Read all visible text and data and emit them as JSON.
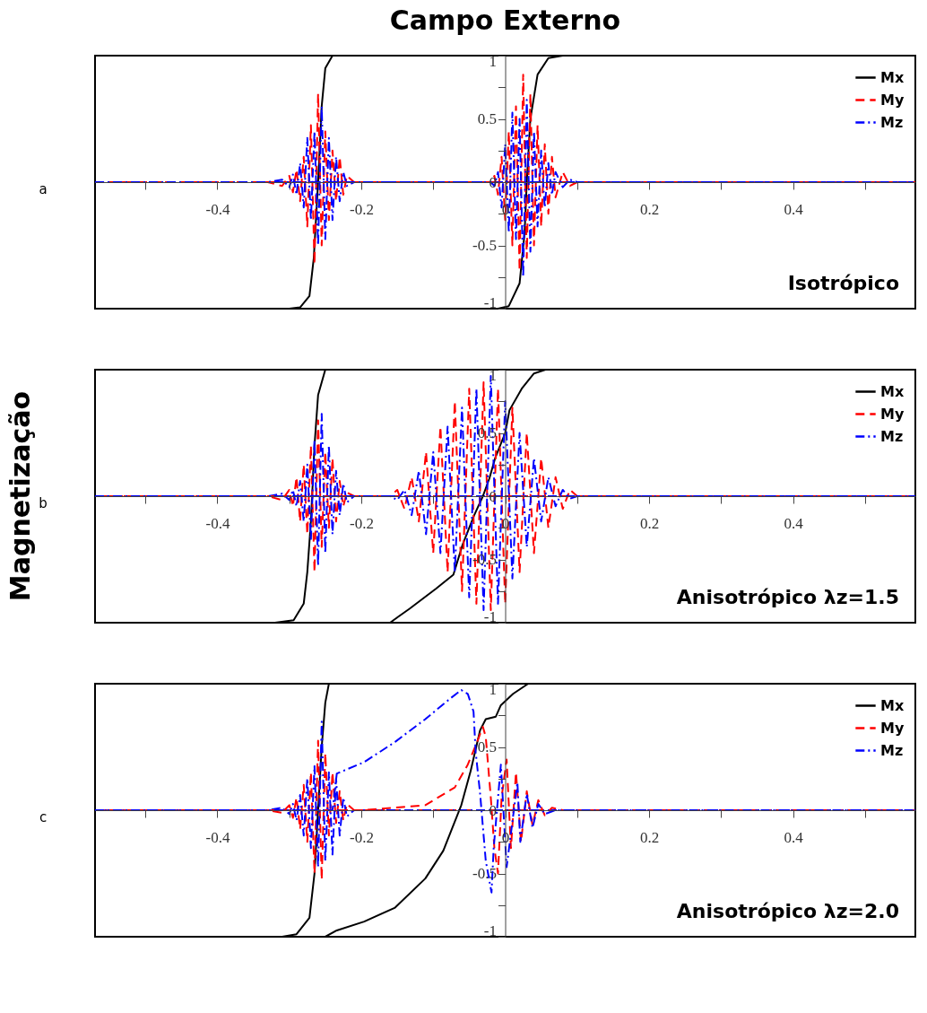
{
  "chart_data": [
    {
      "type": "line",
      "title": "Campo Externo",
      "xlim": [
        -0.57,
        0.57
      ],
      "ylim": [
        -1,
        1
      ],
      "xticks": [
        {
          "value": -0.5,
          "label": null
        },
        -0.4,
        {
          "value": -0.3,
          "label": null
        },
        -0.2,
        {
          "value": -0.1,
          "label": null
        },
        0,
        {
          "value": 0.1,
          "label": null
        },
        0.2,
        {
          "value": 0.3,
          "label": null
        },
        0.4,
        {
          "value": 0.5,
          "label": null
        }
      ],
      "yticks": [
        -1,
        {
          "value": -0.75,
          "label": null
        },
        -0.5,
        {
          "value": -0.25,
          "label": null
        },
        0,
        {
          "value": 0.25,
          "label": null
        },
        0.5,
        {
          "value": 0.75,
          "label": null
        },
        1
      ],
      "grid": false,
      "legend": "top right",
      "annotations": [
        "a",
        "Isotrópico"
      ],
      "series": [
        {
          "name": "Mx",
          "color": "#000000",
          "line_style": "solid",
          "x": [
            0.57,
            -0.24,
            -0.25,
            -0.255,
            -0.26,
            -0.266,
            -0.272,
            -0.285,
            -0.3,
            -0.57
          ],
          "values": [
            1,
            1,
            0.9,
            0.6,
            0,
            -0.6,
            -0.9,
            -0.99,
            -1,
            -1
          ]
        },
        {
          "name": "My",
          "color": "#ff0000",
          "line_style": "dashed",
          "x": [
            0.57,
            -0.21,
            -0.22,
            -0.225,
            -0.23,
            -0.235,
            -0.24,
            -0.245,
            -0.25,
            -0.255,
            -0.26,
            -0.265,
            -0.27,
            -0.275,
            -0.28,
            -0.285,
            -0.29,
            -0.295,
            -0.3,
            -0.31,
            -0.33,
            -0.57
          ],
          "values": [
            0,
            0,
            0.05,
            -0.1,
            0.2,
            -0.15,
            0.25,
            -0.3,
            0.4,
            -0.5,
            0.7,
            -0.65,
            0.45,
            -0.35,
            0.2,
            -0.15,
            0.1,
            -0.08,
            0.05,
            -0.03,
            0,
            0
          ]
        },
        {
          "name": "Mz",
          "color": "#0000ff",
          "line_style": "dashdot",
          "x": [
            0.57,
            -0.21,
            -0.22,
            -0.225,
            -0.23,
            -0.235,
            -0.24,
            -0.245,
            -0.25,
            -0.255,
            -0.26,
            -0.265,
            -0.27,
            -0.275,
            -0.28,
            -0.285,
            -0.29,
            -0.295,
            -0.3,
            -0.31,
            -0.33,
            -0.57
          ],
          "values": [
            0,
            0,
            -0.03,
            0.08,
            -0.15,
            0.2,
            -0.3,
            0.35,
            -0.45,
            0.6,
            -0.5,
            0.4,
            -0.3,
            0.35,
            -0.2,
            0.15,
            -0.1,
            0.06,
            -0.04,
            0.02,
            0,
            0
          ]
        },
        {
          "color": "#000000",
          "line_style": "solid",
          "x": [
            -0.57,
            -0.01,
            0.005,
            0.02,
            0.027,
            0.03,
            0.035,
            0.045,
            0.06,
            0.08,
            0.57
          ],
          "values": [
            -1,
            -1,
            -0.98,
            -0.8,
            -0.4,
            0,
            0.5,
            0.85,
            0.98,
            1,
            1
          ]
        },
        {
          "color": "#ff0000",
          "line_style": "dashed",
          "x": [
            -0.57,
            -0.02,
            -0.015,
            -0.01,
            -0.005,
            0,
            0.005,
            0.01,
            0.015,
            0.02,
            0.025,
            0.03,
            0.035,
            0.04,
            0.045,
            0.05,
            0.055,
            0.06,
            0.065,
            0.07,
            0.08,
            0.09,
            0.1,
            0.57
          ],
          "values": [
            0,
            0,
            0.05,
            -0.1,
            0.2,
            -0.3,
            0.4,
            -0.5,
            0.6,
            -0.7,
            0.85,
            -0.6,
            0.7,
            -0.5,
            0.45,
            -0.35,
            0.3,
            -0.25,
            0.2,
            -0.12,
            0.08,
            -0.03,
            0,
            0
          ]
        },
        {
          "color": "#0000ff",
          "line_style": "dashdot",
          "x": [
            -0.57,
            -0.02,
            -0.015,
            -0.01,
            -0.005,
            0,
            0.005,
            0.01,
            0.015,
            0.02,
            0.025,
            0.03,
            0.035,
            0.04,
            0.045,
            0.05,
            0.055,
            0.06,
            0.065,
            0.07,
            0.08,
            0.09,
            0.1,
            0.57
          ],
          "values": [
            0,
            0,
            -0.03,
            0.08,
            -0.2,
            0.3,
            -0.4,
            0.55,
            -0.45,
            0.5,
            -0.75,
            0.65,
            -0.55,
            0.4,
            -0.35,
            0.25,
            -0.2,
            0.15,
            -0.1,
            0.08,
            -0.04,
            0.02,
            0,
            0
          ]
        }
      ]
    },
    {
      "type": "line",
      "ylabel": "Magnetização",
      "xlim": [
        -0.57,
        0.57
      ],
      "ylim": [
        -1,
        1
      ],
      "xticks": [
        {
          "value": -0.5,
          "label": null
        },
        -0.4,
        {
          "value": -0.3,
          "label": null
        },
        -0.2,
        {
          "value": -0.1,
          "label": null
        },
        0,
        {
          "value": 0.1,
          "label": null
        },
        0.2,
        {
          "value": 0.3,
          "label": null
        },
        0.4,
        {
          "value": 0.5,
          "label": null
        }
      ],
      "yticks": [
        -1,
        {
          "value": -0.75,
          "label": null
        },
        -0.5,
        {
          "value": -0.25,
          "label": null
        },
        0,
        {
          "value": 0.25,
          "label": null
        },
        0.5,
        {
          "value": 0.75,
          "label": null
        },
        1
      ],
      "grid": false,
      "legend": "top right",
      "annotations": [
        "b",
        "Anisotrópico λz=1.5"
      ],
      "series": [
        {
          "name": "Mx",
          "color": "#000000",
          "line_style": "solid",
          "x": [
            0.57,
            -0.25,
            -0.26,
            -0.265,
            -0.27,
            -0.275,
            -0.28,
            -0.294,
            -0.32,
            -0.57
          ],
          "values": [
            1,
            1,
            0.8,
            0.4,
            -0.2,
            -0.6,
            -0.85,
            -0.98,
            -1,
            -1
          ]
        },
        {
          "name": "My",
          "color": "#ff0000",
          "line_style": "dashed",
          "x": [
            0.57,
            -0.21,
            -0.22,
            -0.225,
            -0.23,
            -0.235,
            -0.24,
            -0.245,
            -0.25,
            -0.255,
            -0.26,
            -0.265,
            -0.27,
            -0.275,
            -0.28,
            -0.285,
            -0.29,
            -0.295,
            -0.3,
            -0.31,
            -0.33,
            -0.57
          ],
          "values": [
            0,
            0,
            0.03,
            -0.08,
            0.12,
            -0.2,
            0.3,
            -0.25,
            0.35,
            -0.4,
            0.6,
            -0.6,
            0.4,
            -0.3,
            0.25,
            -0.2,
            0.15,
            -0.08,
            0.05,
            -0.03,
            0,
            0
          ]
        },
        {
          "name": "Mz",
          "color": "#0000ff",
          "line_style": "dashdot",
          "x": [
            0.57,
            -0.21,
            -0.22,
            -0.225,
            -0.23,
            -0.235,
            -0.24,
            -0.245,
            -0.25,
            -0.255,
            -0.26,
            -0.265,
            -0.27,
            -0.275,
            -0.28,
            -0.285,
            -0.29,
            -0.295,
            -0.3,
            -0.31,
            -0.33,
            -0.57
          ],
          "values": [
            0,
            0,
            -0.05,
            0.1,
            -0.15,
            0.2,
            -0.3,
            0.4,
            -0.45,
            0.65,
            -0.55,
            0.45,
            -0.35,
            0.25,
            -0.2,
            0.12,
            -0.08,
            0.05,
            -0.03,
            0.02,
            0,
            0
          ]
        },
        {
          "color": "#000000",
          "line_style": "solid",
          "x": [
            -0.57,
            -0.16,
            -0.148,
            -0.133,
            -0.096,
            -0.072,
            -0.059,
            -0.043,
            -0.031,
            -0.022,
            -0.014,
            0.0,
            0.006,
            0.023,
            0.04,
            0.056,
            0.57
          ],
          "values": [
            -1,
            -1,
            -0.95,
            -0.89,
            -0.73,
            -0.62,
            -0.38,
            -0.15,
            0,
            0.14,
            0.3,
            0.5,
            0.68,
            0.85,
            0.97,
            1,
            1
          ]
        },
        {
          "color": "#ff0000",
          "line_style": "dashed",
          "x": [
            -0.57,
            -0.16,
            -0.15,
            -0.14,
            -0.13,
            -0.12,
            -0.11,
            -0.1,
            -0.09,
            -0.08,
            -0.07,
            -0.06,
            -0.05,
            -0.04,
            -0.03,
            -0.02,
            -0.01,
            0,
            0.01,
            0.02,
            0.03,
            0.04,
            0.05,
            0.06,
            0.07,
            0.08,
            0.09,
            0.1,
            0.57
          ],
          "values": [
            0,
            0,
            0.05,
            -0.1,
            0.15,
            -0.2,
            0.35,
            -0.45,
            0.55,
            -0.6,
            0.75,
            -0.75,
            0.85,
            -0.85,
            0.9,
            -0.9,
            0.85,
            -0.85,
            0.7,
            -0.6,
            0.5,
            -0.45,
            0.3,
            -0.25,
            0.15,
            -0.1,
            0.05,
            0,
            0
          ]
        },
        {
          "color": "#0000ff",
          "line_style": "dashdot",
          "x": [
            -0.57,
            -0.16,
            -0.15,
            -0.14,
            -0.13,
            -0.12,
            -0.11,
            -0.1,
            -0.09,
            -0.08,
            -0.07,
            -0.06,
            -0.05,
            -0.04,
            -0.03,
            -0.02,
            -0.01,
            0,
            0.01,
            0.02,
            0.03,
            0.04,
            0.05,
            0.06,
            0.07,
            0.08,
            0.09,
            0.1,
            0.57
          ],
          "values": [
            0,
            0,
            -0.03,
            0.05,
            -0.15,
            0.2,
            -0.3,
            0.35,
            -0.45,
            0.55,
            -0.6,
            0.7,
            -0.8,
            0.85,
            -0.9,
            0.95,
            -0.85,
            0.75,
            -0.65,
            0.5,
            -0.4,
            0.3,
            -0.2,
            0.15,
            -0.08,
            0.05,
            -0.02,
            0,
            0
          ]
        }
      ]
    },
    {
      "type": "line",
      "xlim": [
        -0.57,
        0.57
      ],
      "ylim": [
        -1,
        1
      ],
      "xticks": [
        {
          "value": -0.5,
          "label": null
        },
        -0.4,
        {
          "value": -0.3,
          "label": null
        },
        -0.2,
        {
          "value": -0.1,
          "label": null
        },
        0,
        {
          "value": 0.1,
          "label": null
        },
        0.2,
        {
          "value": 0.3,
          "label": null
        },
        0.4,
        {
          "value": 0.5,
          "label": null
        }
      ],
      "yticks": [
        -1,
        {
          "value": -0.75,
          "label": null
        },
        -0.5,
        {
          "value": -0.25,
          "label": null
        },
        0,
        {
          "value": 0.25,
          "label": null
        },
        0.5,
        {
          "value": 0.75,
          "label": null
        },
        1
      ],
      "grid": false,
      "legend": "top right",
      "annotations": [
        "c",
        "Anisotrópico λz=2.0"
      ],
      "series": [
        {
          "name": "Mx",
          "color": "#000000",
          "line_style": "solid",
          "x": [
            0.57,
            -0.245,
            -0.25,
            -0.255,
            -0.26,
            -0.265,
            -0.272,
            -0.29,
            -0.31,
            -0.57
          ],
          "values": [
            1,
            1,
            0.85,
            0.5,
            0,
            -0.5,
            -0.85,
            -0.98,
            -1,
            -1
          ]
        },
        {
          "name": "My",
          "color": "#ff0000",
          "line_style": "dashed",
          "x": [
            0.57,
            -0.21,
            -0.22,
            -0.225,
            -0.23,
            -0.235,
            -0.24,
            -0.245,
            -0.25,
            -0.255,
            -0.26,
            -0.265,
            -0.27,
            -0.275,
            -0.28,
            -0.285,
            -0.29,
            -0.295,
            -0.3,
            -0.31,
            -0.33,
            -0.57
          ],
          "values": [
            0,
            0,
            0.05,
            -0.08,
            0.15,
            -0.1,
            0.3,
            -0.2,
            0.45,
            -0.55,
            0.55,
            -0.5,
            0.3,
            -0.25,
            0.2,
            -0.15,
            0.1,
            -0.06,
            0.04,
            -0.02,
            0,
            0
          ]
        },
        {
          "name": "Mz",
          "color": "#0000ff",
          "line_style": "dashdot",
          "x": [
            0.57,
            -0.21,
            -0.22,
            -0.225,
            -0.23,
            -0.235,
            -0.24,
            -0.245,
            -0.25,
            -0.255,
            -0.26,
            -0.265,
            -0.27,
            -0.275,
            -0.28,
            -0.285,
            -0.29,
            -0.295,
            -0.3,
            -0.31,
            -0.33,
            -0.57
          ],
          "values": [
            0,
            0,
            -0.05,
            0.1,
            -0.2,
            0.25,
            -0.35,
            0.3,
            -0.4,
            0.7,
            -0.45,
            0.35,
            -0.3,
            0.25,
            -0.2,
            0.12,
            -0.08,
            0.05,
            -0.03,
            0.02,
            0,
            0
          ]
        },
        {
          "color": "#000000",
          "line_style": "solid",
          "x": [
            -0.57,
            -0.25,
            -0.234,
            -0.196,
            -0.153,
            -0.111,
            -0.086,
            -0.07,
            -0.061,
            -0.048,
            -0.035,
            -0.027,
            -0.013,
            -0.006,
            0.011,
            0.032,
            0.06,
            0.57
          ],
          "values": [
            -1,
            -1,
            -0.95,
            -0.88,
            -0.77,
            -0.54,
            -0.32,
            -0.09,
            0.04,
            0.31,
            0.63,
            0.72,
            0.74,
            0.83,
            0.92,
            1,
            1,
            1
          ]
        },
        {
          "color": "#ff0000",
          "line_style": "dashed",
          "x": [
            -0.57,
            -0.2,
            -0.111,
            -0.07,
            -0.052,
            -0.039,
            -0.031,
            -0.027,
            -0.02,
            -0.015,
            -0.01,
            -0.005,
            0.002,
            0.008,
            0.015,
            0.022,
            0.03,
            0.038,
            0.046,
            0.055,
            0.065,
            0.08,
            0.57
          ],
          "values": [
            0,
            0,
            0.04,
            0.18,
            0.36,
            0.54,
            0.66,
            0.58,
            0.1,
            -0.3,
            -0.5,
            0.1,
            0.4,
            -0.3,
            0.3,
            -0.25,
            0.15,
            -0.12,
            0.08,
            -0.04,
            0.02,
            0,
            0
          ]
        },
        {
          "color": "#0000ff",
          "line_style": "dashdot",
          "x": [
            -0.57,
            -0.24,
            -0.234,
            -0.196,
            -0.153,
            -0.111,
            -0.077,
            -0.061,
            -0.052,
            -0.044,
            -0.041,
            -0.035,
            -0.027,
            -0.019,
            -0.016,
            -0.006,
            0.002,
            0.017,
            0.021,
            0.03,
            0.038,
            0.046,
            0.055,
            0.07,
            0.57
          ],
          "values": [
            0,
            0,
            0.29,
            0.38,
            0.54,
            0.72,
            0.88,
            0.95,
            0.92,
            0.78,
            0.46,
            0.14,
            -0.4,
            -0.65,
            -0.3,
            0.36,
            -0.45,
            0.22,
            -0.25,
            0.13,
            -0.14,
            0.05,
            -0.03,
            0,
            0
          ]
        }
      ]
    }
  ]
}
